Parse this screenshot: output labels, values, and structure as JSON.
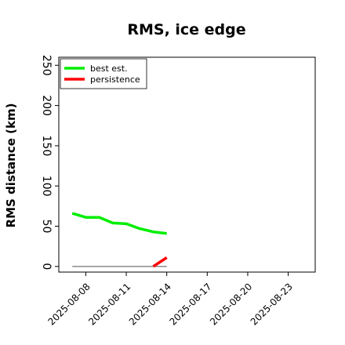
{
  "chart_data": {
    "type": "line",
    "title": "RMS, ice edge",
    "xlabel": "",
    "ylabel": "RMS distance (km)",
    "x_type": "date",
    "xlim": [
      "2025-08-06",
      "2025-08-25"
    ],
    "ylim": [
      -7,
      260
    ],
    "y_ticks": [
      0,
      50,
      100,
      150,
      200,
      250
    ],
    "y_tick_rotation_deg": 90,
    "x_ticks": [
      "2025-08-08",
      "2025-08-11",
      "2025-08-14",
      "2025-08-17",
      "2025-08-20",
      "2025-08-23"
    ],
    "x_tick_rotation_deg": 45,
    "grid": false,
    "legend_position": "top-left",
    "zero_line": {
      "y": 0,
      "x_from": "2025-08-07",
      "x_to": "2025-08-14",
      "color": "#808080"
    },
    "series": [
      {
        "name": "best est.",
        "color": "#00ee00",
        "x": [
          "2025-08-07",
          "2025-08-08",
          "2025-08-09",
          "2025-08-10",
          "2025-08-11",
          "2025-08-12",
          "2025-08-13",
          "2025-08-14"
        ],
        "y": [
          66,
          61,
          61,
          54,
          53,
          47,
          43,
          41
        ]
      },
      {
        "name": "persistence",
        "color": "#ff0000",
        "x": [
          "2025-08-13",
          "2025-08-14"
        ],
        "y": [
          0,
          11
        ]
      }
    ]
  }
}
